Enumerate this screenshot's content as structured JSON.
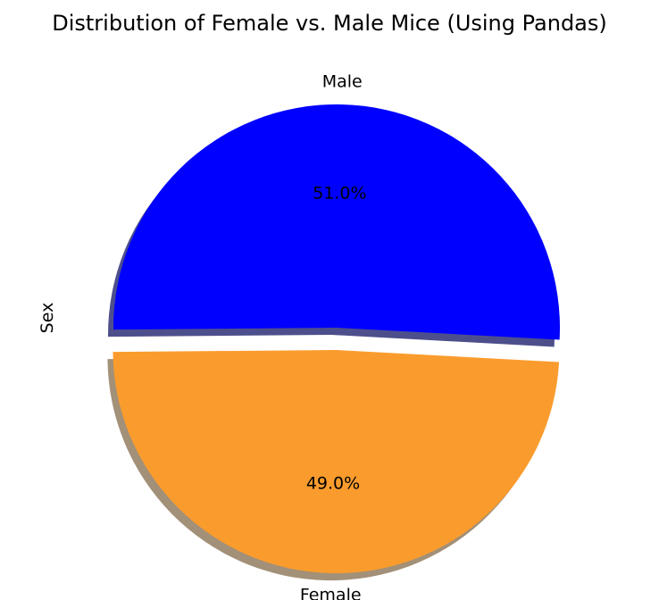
{
  "chart_data": {
    "type": "pie",
    "title": "Distribution of Female vs. Male Mice (Using Pandas)",
    "ylabel": "Sex",
    "categories": [
      "Female",
      "Male"
    ],
    "values": [
      49.0,
      51.0
    ],
    "percent_labels": [
      "49.0%",
      "51.0%"
    ],
    "colors": [
      "#fa9c2d",
      "#0000ff"
    ],
    "explode": [
      0.1,
      0
    ],
    "shadow": true,
    "legend": "none"
  }
}
